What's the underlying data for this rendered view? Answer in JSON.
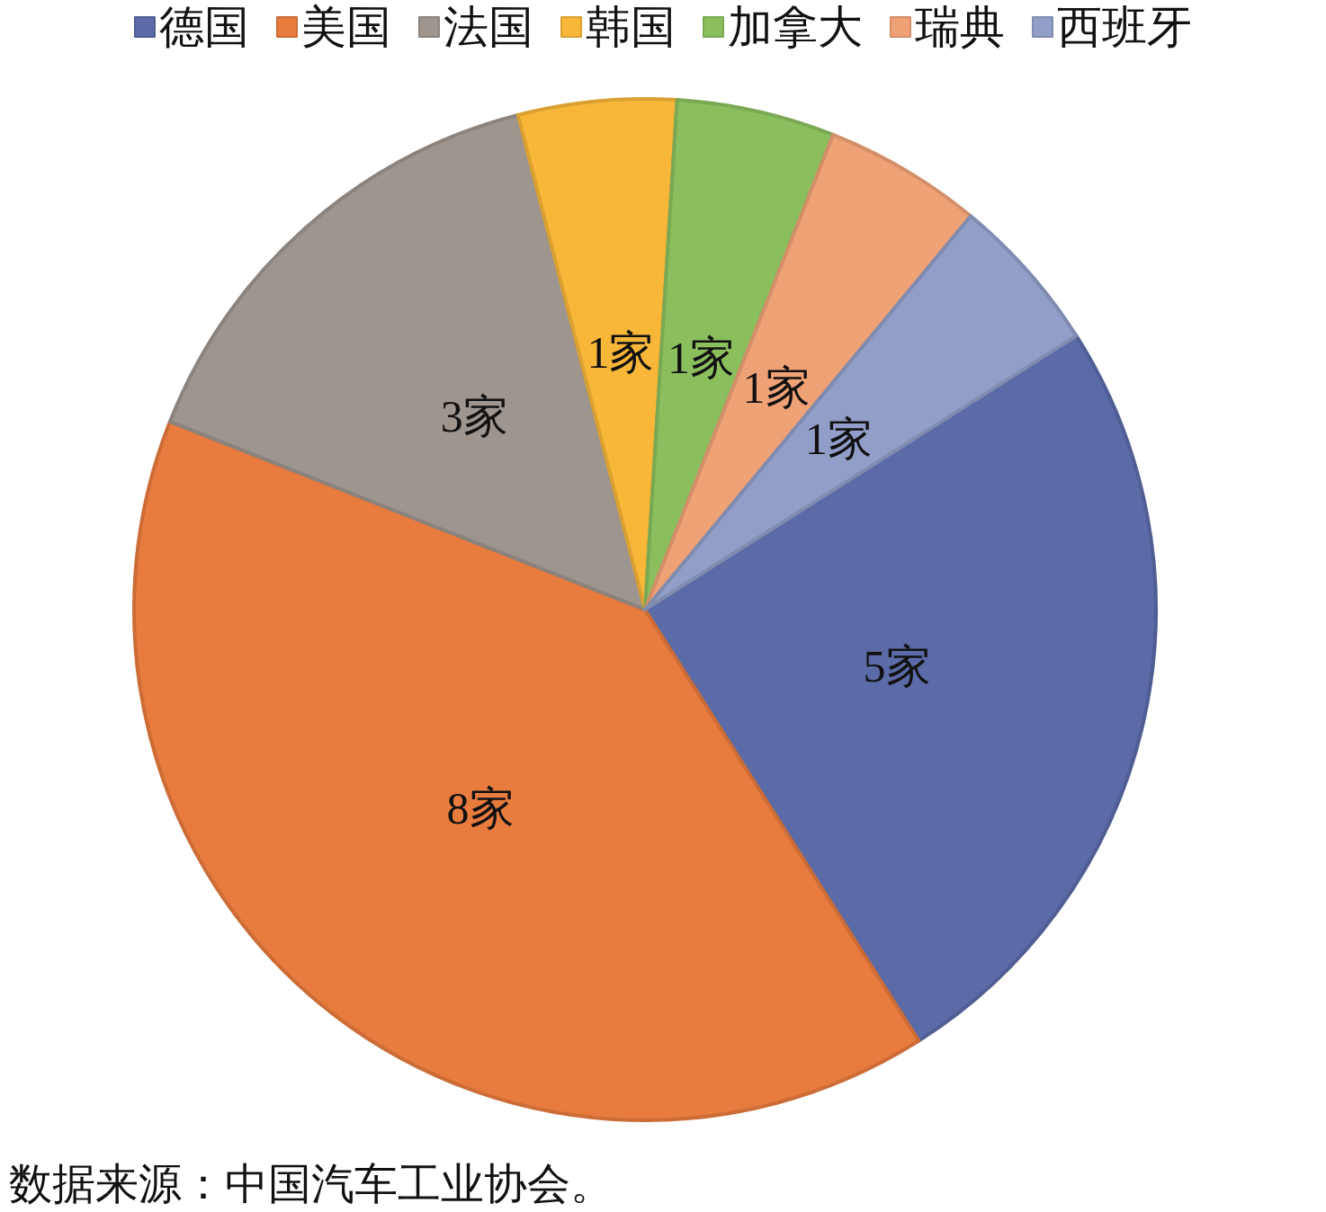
{
  "chart_data": {
    "type": "pie",
    "categories": [
      "德国",
      "美国",
      "法国",
      "韩国",
      "加拿大",
      "瑞典",
      "西班牙"
    ],
    "values": [
      5,
      8,
      3,
      1,
      1,
      1,
      1
    ],
    "value_labels": [
      "5家",
      "8家",
      "3家",
      "1家",
      "1家",
      "1家",
      "1家"
    ],
    "colors": [
      "#5b6ba8",
      "#e87b3e",
      "#9e958e",
      "#f8b739",
      "#8bbf5e",
      "#f0a277",
      "#919ec8"
    ],
    "legend": "top",
    "annotations": [
      "数据来源：中国汽车工业协会。"
    ]
  }
}
